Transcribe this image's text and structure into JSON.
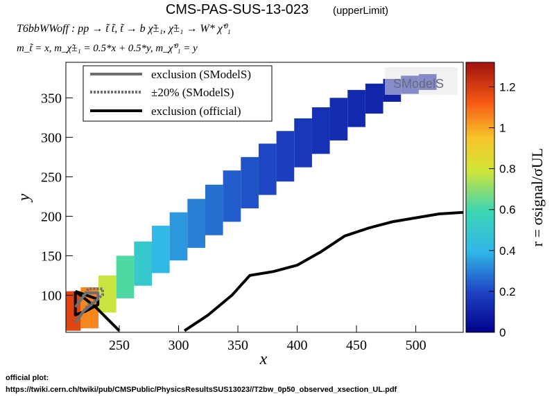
{
  "header": {
    "title": "CMS-PAS-SUS-13-023",
    "title_tag": "(upperLimit)",
    "process": "T6bbWWoff : pp → t̃ t̃, t̃  → b χ̃±₁, χ̃±₁ → W* χ̃⁰₁",
    "masses": "m_t̃ = x, m_χ̃±₁ = 0.5*x + 0.5*y, m_χ̃⁰₁ = y"
  },
  "footer": {
    "label": "official plot:",
    "url": "https://twiki.cern.ch/twiki/pub/CMSPublic/PhysicsResultsSUS13023//T2bw_0p50_observed_xsection_UL.pdf"
  },
  "logo": {
    "text": "SModelS"
  },
  "chart_data": {
    "type": "heatmap",
    "title": "CMS-PAS-SUS-13-023",
    "xlabel": "x",
    "ylabel": "y",
    "zlabel": "r = σsignal/σUL",
    "xlim": [
      205,
      540
    ],
    "ylim": [
      53,
      395
    ],
    "zlim": [
      0,
      1.32
    ],
    "x_ticks": [
      250,
      300,
      350,
      400,
      450,
      500
    ],
    "y_ticks": [
      100,
      150,
      200,
      250,
      300,
      350
    ],
    "z_ticks": [
      0,
      0.2,
      0.4,
      0.6,
      0.8,
      1,
      1.2
    ],
    "legend": {
      "position": "top-left",
      "entries": [
        {
          "label": "exclusion (SModelS)",
          "style": "solid",
          "color": "#6e6e6e"
        },
        {
          "label": "±20% (SModelS)",
          "style": "dotted",
          "color": "#6e6e6e"
        },
        {
          "label": "exclusion (official)",
          "style": "solid",
          "color": "#000000"
        }
      ]
    },
    "heatmap_band": [
      {
        "x": 210,
        "y_min": 55,
        "y_max": 105,
        "r": 1.18
      },
      {
        "x": 225,
        "y_min": 58,
        "y_max": 110,
        "r": 1.05
      },
      {
        "x": 240,
        "y_min": 78,
        "y_max": 125,
        "r": 0.78
      },
      {
        "x": 255,
        "y_min": 96,
        "y_max": 150,
        "r": 0.62
      },
      {
        "x": 270,
        "y_min": 112,
        "y_max": 168,
        "r": 0.5
      },
      {
        "x": 285,
        "y_min": 128,
        "y_max": 188,
        "r": 0.4
      },
      {
        "x": 300,
        "y_min": 144,
        "y_max": 205,
        "r": 0.34
      },
      {
        "x": 315,
        "y_min": 160,
        "y_max": 222,
        "r": 0.3
      },
      {
        "x": 330,
        "y_min": 176,
        "y_max": 240,
        "r": 0.27
      },
      {
        "x": 345,
        "y_min": 193,
        "y_max": 258,
        "r": 0.24
      },
      {
        "x": 360,
        "y_min": 210,
        "y_max": 275,
        "r": 0.22
      },
      {
        "x": 375,
        "y_min": 227,
        "y_max": 292,
        "r": 0.2
      },
      {
        "x": 390,
        "y_min": 244,
        "y_max": 308,
        "r": 0.18
      },
      {
        "x": 405,
        "y_min": 262,
        "y_max": 324,
        "r": 0.16
      },
      {
        "x": 420,
        "y_min": 279,
        "y_max": 338,
        "r": 0.14
      },
      {
        "x": 435,
        "y_min": 296,
        "y_max": 350,
        "r": 0.13
      },
      {
        "x": 450,
        "y_min": 313,
        "y_max": 360,
        "r": 0.12
      },
      {
        "x": 465,
        "y_min": 330,
        "y_max": 368,
        "r": 0.11
      },
      {
        "x": 480,
        "y_min": 345,
        "y_max": 374,
        "r": 0.1
      },
      {
        "x": 495,
        "y_min": 355,
        "y_max": 378,
        "r": 0.09
      },
      {
        "x": 510,
        "y_min": 360,
        "y_max": 380,
        "r": 0.08
      }
    ],
    "series": [
      {
        "name": "exclusion (official)",
        "style": "solid",
        "points": [
          [
            213,
            105
          ],
          [
            222,
            100
          ],
          [
            232,
            95
          ],
          [
            232,
            88
          ],
          [
            222,
            80
          ],
          [
            213,
            75
          ],
          [
            213,
            105
          ]
        ]
      },
      {
        "name": "exclusion (official)",
        "style": "solid",
        "points": [
          [
            213,
            105
          ],
          [
            230,
            85
          ],
          [
            250,
            55
          ]
        ]
      },
      {
        "name": "exclusion (official)",
        "style": "solid",
        "points": [
          [
            305,
            55
          ],
          [
            325,
            75
          ],
          [
            345,
            100
          ],
          [
            360,
            125
          ],
          [
            380,
            130
          ],
          [
            400,
            138
          ],
          [
            420,
            155
          ],
          [
            440,
            175
          ],
          [
            460,
            185
          ],
          [
            480,
            193
          ],
          [
            500,
            198
          ],
          [
            520,
            203
          ],
          [
            540,
            205
          ]
        ]
      },
      {
        "name": "exclusion (SModelS)",
        "style": "solid",
        "points": [
          [
            213,
            65
          ],
          [
            220,
            80
          ],
          [
            232,
            95
          ],
          [
            232,
            103
          ],
          [
            222,
            103
          ],
          [
            213,
            85
          ]
        ]
      },
      {
        "name": "±20% (SModelS)",
        "style": "dotted",
        "points": [
          [
            215,
            70
          ],
          [
            224,
            88
          ],
          [
            236,
            100
          ],
          [
            236,
            108
          ],
          [
            224,
            108
          ],
          [
            215,
            90
          ]
        ]
      }
    ]
  }
}
